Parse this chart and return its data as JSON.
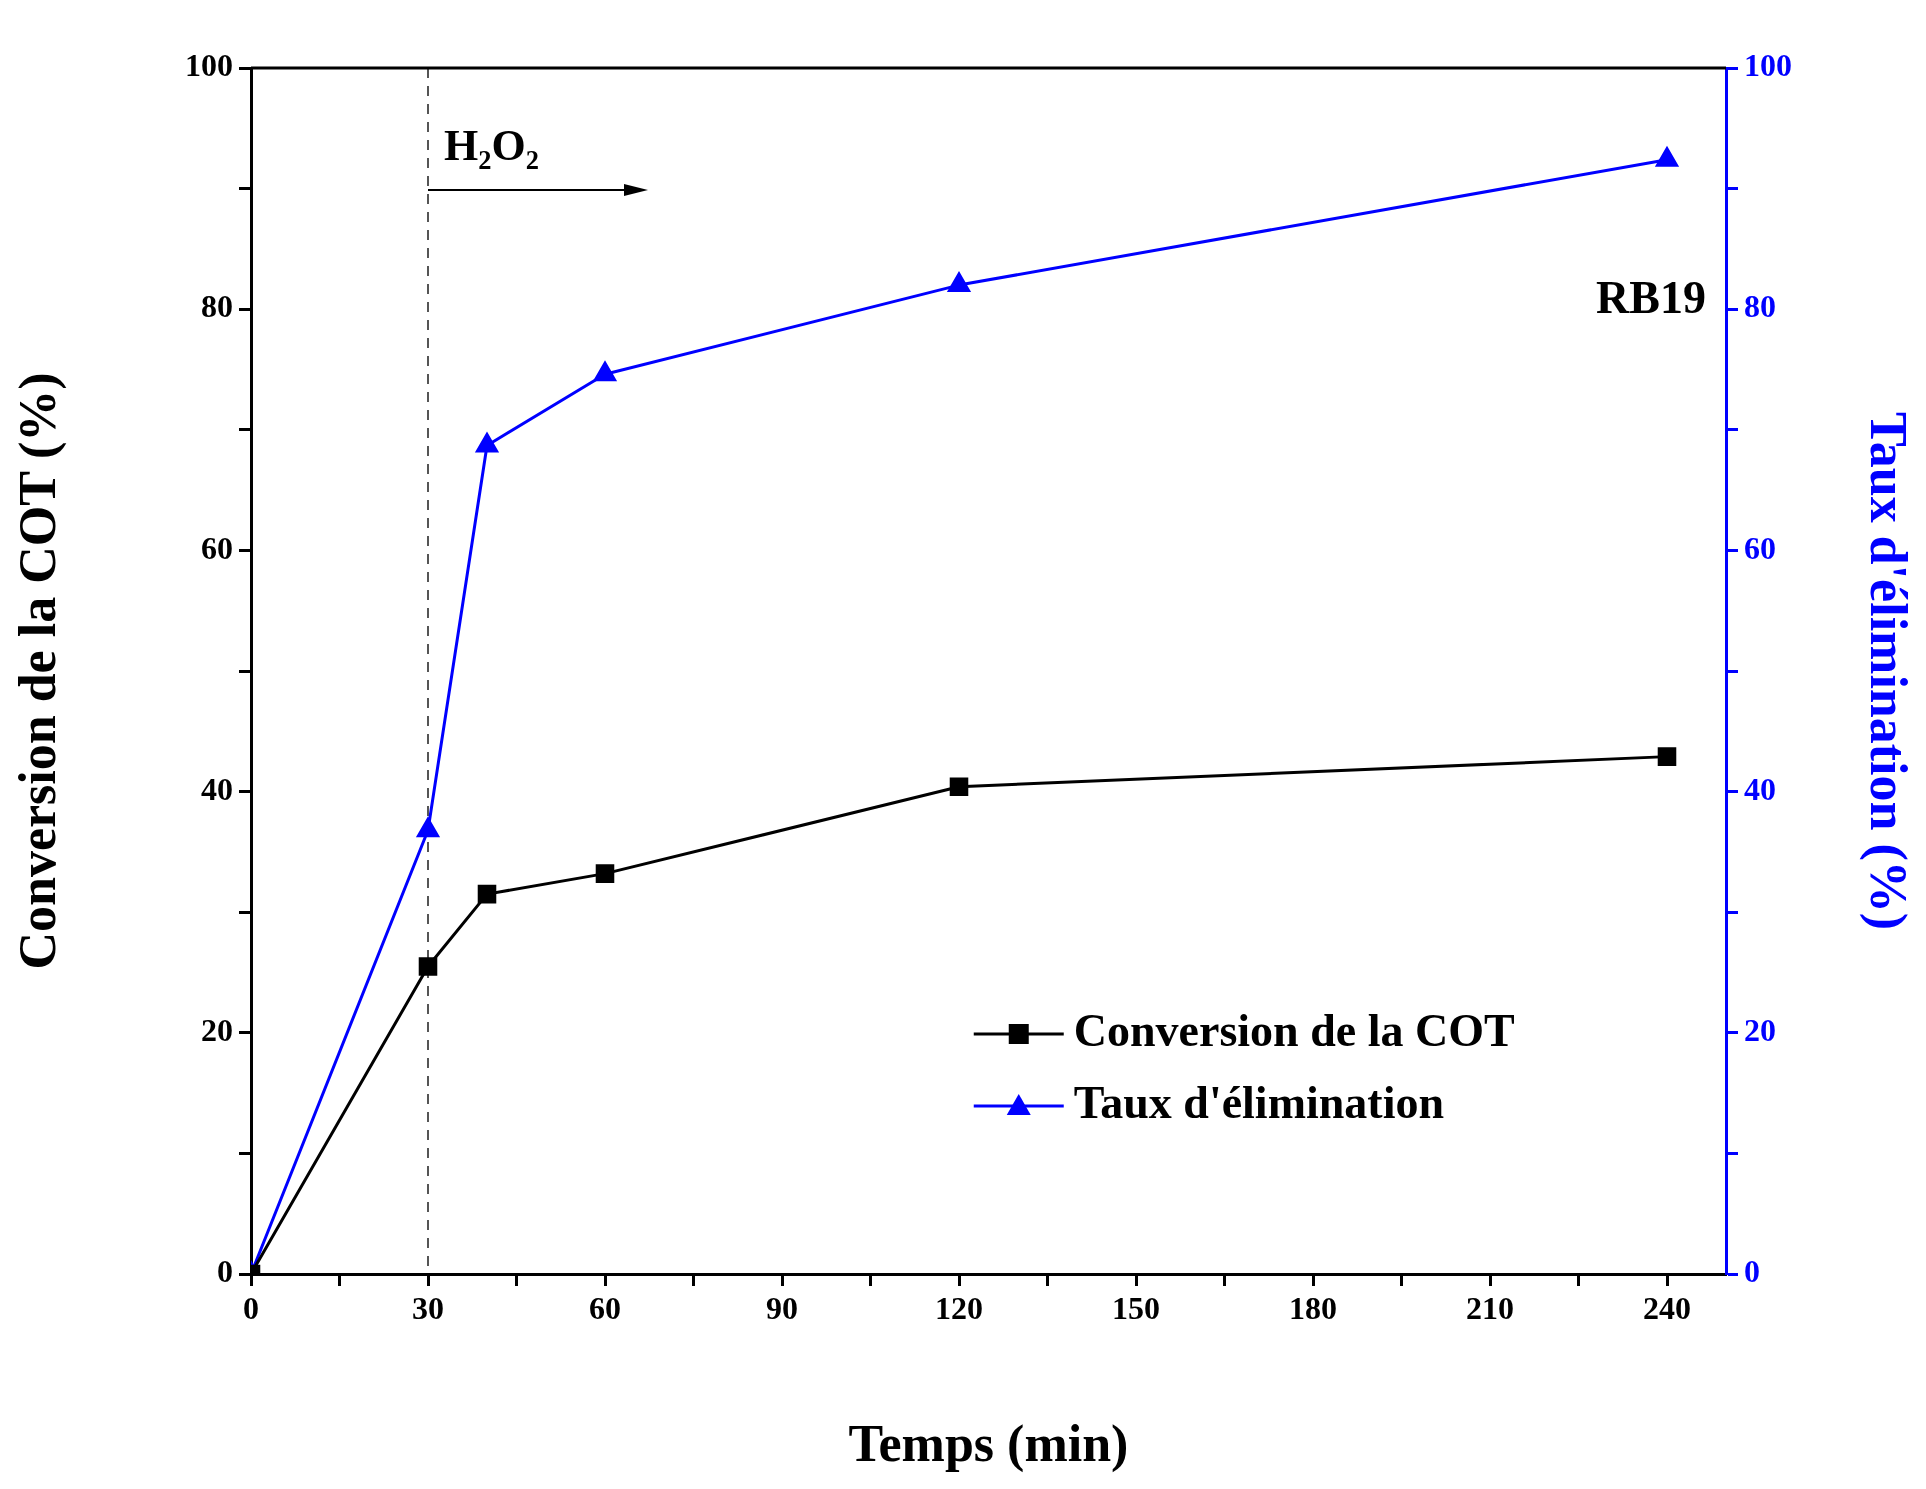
{
  "chart_data": {
    "type": "line",
    "xlabel": "Temps (min)",
    "ylabel": "Conversion de la COT (%)",
    "y2label": "Taux d'élimination (%)",
    "x": [
      0,
      30,
      40,
      60,
      120,
      240
    ],
    "series": [
      {
        "name": "Conversion de la COT",
        "color": "#000000",
        "marker": "square",
        "values": [
          0,
          25.5,
          31.5,
          33.2,
          40.4,
          42.9
        ]
      },
      {
        "name": "Taux d'élimination",
        "color": "#0000ff",
        "marker": "triangle",
        "axis": "y2",
        "values": [
          0,
          36.8,
          68.7,
          74.6,
          82.0,
          92.4
        ]
      }
    ],
    "xlim": [
      0,
      250
    ],
    "xticks": [
      0,
      {
        "value": 15,
        "label": null
      },
      30,
      {
        "value": 45,
        "label": null
      },
      60,
      {
        "value": 75,
        "label": null
      },
      90,
      {
        "value": 105,
        "label": null
      },
      120,
      {
        "value": 135,
        "label": null
      },
      150,
      {
        "value": 165,
        "label": null
      },
      180,
      {
        "value": 195,
        "label": null
      },
      210,
      {
        "value": 225,
        "label": null
      },
      240
    ],
    "ylim": [
      0,
      100
    ],
    "yticks": [
      0,
      {
        "value": 10,
        "label": null
      },
      20,
      {
        "value": 30,
        "label": null
      },
      40,
      {
        "value": 50,
        "label": null
      },
      60,
      {
        "value": 70,
        "label": null
      },
      80,
      {
        "value": 90,
        "label": null
      },
      100
    ],
    "y2lim": [
      0,
      100
    ],
    "y2ticks": [
      0,
      {
        "value": 10,
        "label": null
      },
      20,
      {
        "value": 30,
        "label": null
      },
      40,
      {
        "value": 50,
        "label": null
      },
      60,
      {
        "value": 70,
        "label": null
      },
      80,
      {
        "value": 90,
        "label": null
      },
      100
    ],
    "ref_lines": [
      {
        "axis": "x",
        "value": 30,
        "label": "H₂O₂",
        "color": "#555555",
        "line_style": "dashed"
      }
    ],
    "annotations": [
      "RB19"
    ],
    "legend": "bottom right",
    "grid": false,
    "line_style": "solid"
  }
}
